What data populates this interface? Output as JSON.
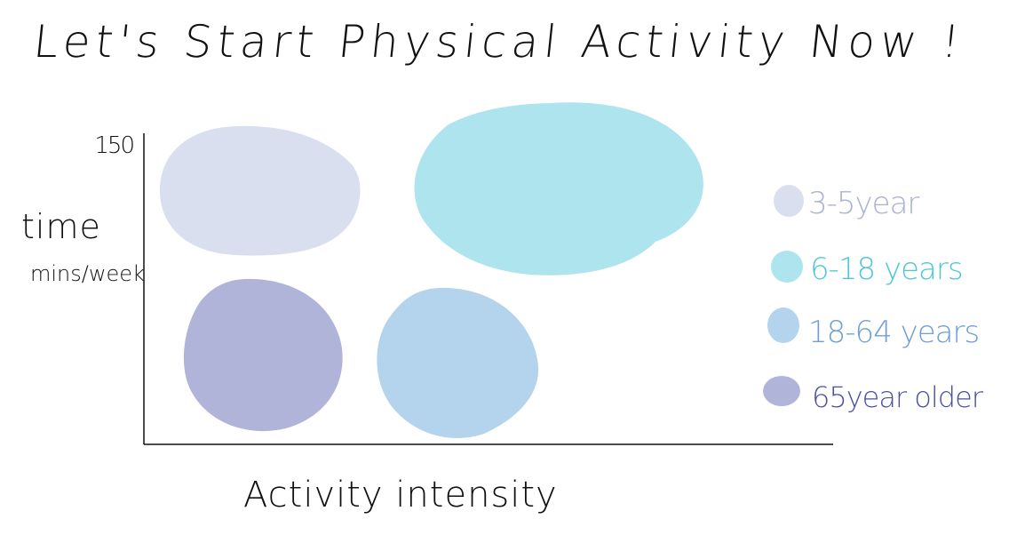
{
  "title": "Let's Start Physical Activity Now !",
  "chart_data": {
    "type": "bubble",
    "title": "Let's Start Physical Activity Now !",
    "xlabel": "Activity intensity",
    "ylabel_line1": "time",
    "ylabel_line2": "mins/week",
    "y_tick": "150",
    "grid": false,
    "legend_position": "right",
    "series": [
      {
        "name": "3-5year",
        "color": "#d9dfee"
      },
      {
        "name": "6-18 years",
        "color": "#aee4ee"
      },
      {
        "name": "18-64 years",
        "color": "#b4d3ec"
      },
      {
        "name": "65year older",
        "color": "#b1b4d9"
      }
    ],
    "legend_text_colors": [
      "#a9b2d0",
      "#4fc7d7",
      "#6f9fd6",
      "#4a4fa6"
    ]
  }
}
